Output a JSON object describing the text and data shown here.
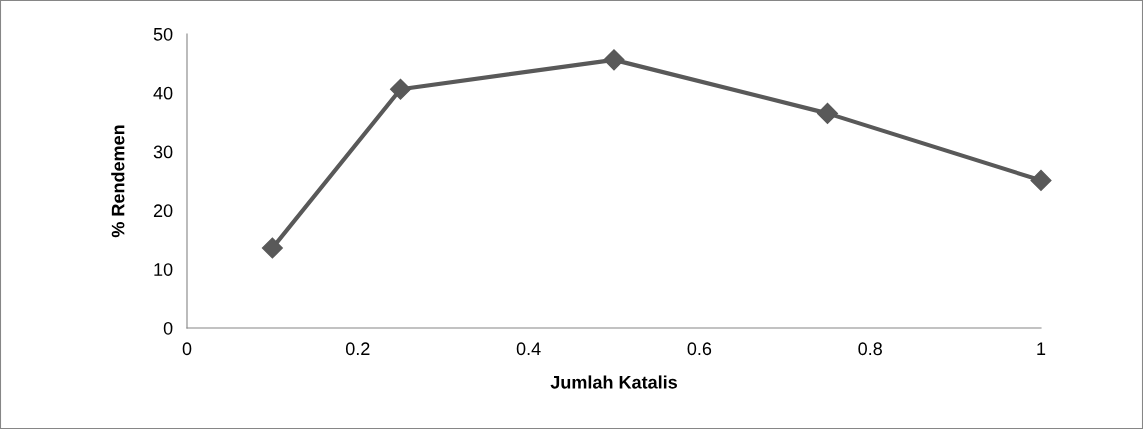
{
  "chart_data": {
    "type": "line",
    "xlabel": "Jumlah Katalis",
    "ylabel": "% Rendemen",
    "x": [
      0.1,
      0.25,
      0.5,
      0.75,
      1
    ],
    "series": [
      {
        "color": "#595959",
        "values": [
          13.6,
          40.6,
          45.6,
          36.5,
          25.1
        ]
      }
    ],
    "xlim": [
      0,
      1
    ],
    "xticks": [
      0,
      {
        "value": 0.2,
        "label": "0.2"
      },
      {
        "value": 0.4,
        "label": "0.4"
      },
      {
        "value": 0.6,
        "label": "0.6"
      },
      {
        "value": 0.8,
        "label": "0.8"
      },
      1
    ],
    "ylim": [
      0,
      50
    ],
    "yticks": [
      0,
      10,
      20,
      30,
      40,
      50
    ],
    "marker": "diamond",
    "line_style": "solid",
    "grid": false,
    "legend": false
  }
}
